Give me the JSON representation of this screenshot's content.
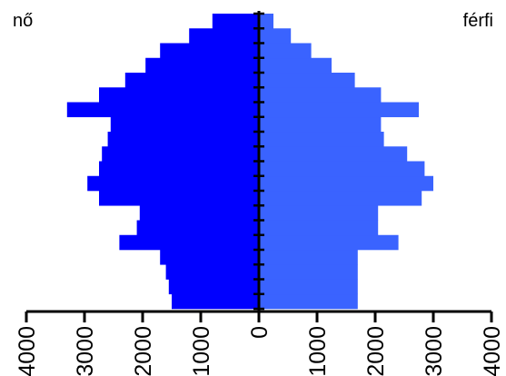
{
  "chart_data": {
    "type": "bar",
    "orientation": "horizontal-pyramid",
    "left_label": "nő",
    "right_label": "férfi",
    "xlim": [
      -4000,
      4000
    ],
    "xticks": [
      -4000,
      -3000,
      -2000,
      -1000,
      0,
      1000,
      2000,
      3000,
      4000
    ],
    "xtick_labels": [
      "4000",
      "3000",
      "2000",
      "1000",
      "0",
      "1000",
      "2000",
      "3000",
      "4000"
    ],
    "grid": false,
    "series": [
      {
        "side": "left",
        "color": "#0000ff",
        "values": [
          1500,
          1550,
          1600,
          1700,
          2400,
          2100,
          2050,
          2750,
          2950,
          2750,
          2700,
          2600,
          2550,
          3300,
          2750,
          2300,
          1950,
          1700,
          1200,
          800
        ]
      },
      {
        "side": "right",
        "color": "#3a63ff",
        "values": [
          1700,
          1700,
          1700,
          1700,
          2400,
          2050,
          2050,
          2800,
          3000,
          2850,
          2550,
          2150,
          2100,
          2750,
          2100,
          1650,
          1250,
          900,
          550,
          250
        ]
      }
    ]
  }
}
